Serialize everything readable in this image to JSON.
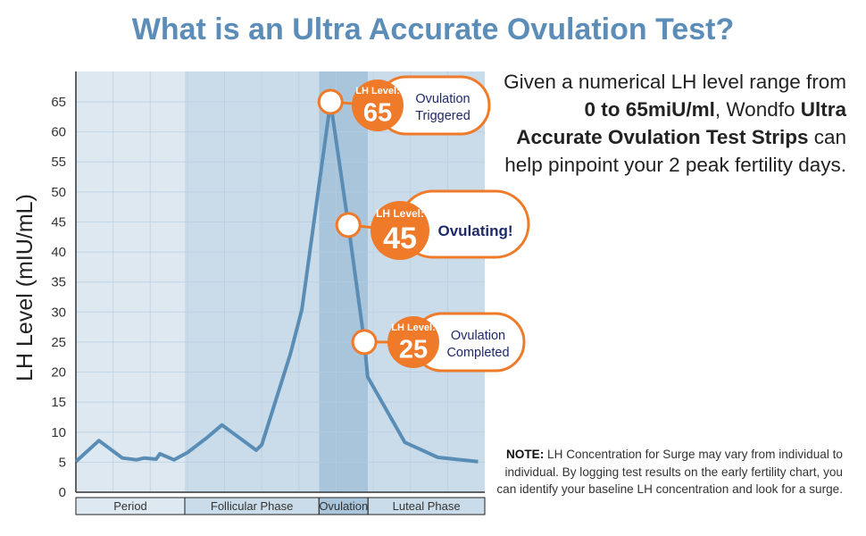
{
  "title": "What is an Ultra Accurate Ovulation Test?",
  "description": {
    "part1": "Given a numerical LH level range from ",
    "bold1": "0 to 65miU/ml",
    "part2": ", Wondfo ",
    "bold2": "Ultra Accurate Ovulation Test Strips",
    "part3": " can help pinpoint your 2 peak fertility days."
  },
  "note": {
    "label": "NOTE:",
    "text": " LH Concentration for Surge may vary from individual to individual. By logging test results on the early fertility chart, you can identify your baseline LH concentration and look for a surge."
  },
  "colors": {
    "title": "#5b8db8",
    "line": "#5a8db5",
    "orange": "#ee7a2a",
    "navy": "#1f2a6b",
    "band_light": "#dde8f1",
    "band_mid": "#cadcea",
    "band_dark": "#a8c5dc"
  },
  "chart_data": {
    "type": "line",
    "title": "",
    "xlabel": "",
    "ylabel": "LH Level (mIU/mL)",
    "ylim": [
      0,
      68
    ],
    "xlim": [
      0,
      11
    ],
    "yticks": [
      "0",
      "5",
      "10",
      "15",
      "20",
      "25",
      "30",
      "35",
      "40",
      "45",
      "50",
      "55",
      "60",
      "65"
    ],
    "grid": true,
    "series": [
      {
        "name": "LH Level",
        "x": [
          0,
          0.62,
          1.25,
          1.63,
          1.84,
          2.16,
          2.26,
          2.64,
          3.0,
          3.53,
          3.93,
          4.85,
          5.0,
          5.77,
          6.08,
          6.85,
          7.33,
          7.76,
          7.85,
          8.85,
          9.74,
          10.82
        ],
        "y": [
          5.1,
          8.6,
          5.7,
          5.4,
          5.7,
          5.5,
          6.4,
          5.4,
          6.6,
          9.1,
          11.2,
          7.0,
          7.9,
          23,
          30.4,
          65,
          44.5,
          25,
          19.2,
          8.3,
          5.8,
          5.1
        ]
      }
    ],
    "phases": [
      {
        "label": "Period",
        "from": 0,
        "to": 2.93,
        "shade": "light"
      },
      {
        "label": "Follicular Phase",
        "from": 2.93,
        "to": 6.54,
        "shade": "mid"
      },
      {
        "label": "Ovulation",
        "from": 6.54,
        "to": 7.86,
        "shade": "dark"
      },
      {
        "label": "Luteal Phase",
        "from": 7.86,
        "to": 11,
        "shade": "mid"
      }
    ],
    "annotations": [
      {
        "x": 6.85,
        "y": 65,
        "tag": "LH Level:",
        "value": "65",
        "line1": "Ovulation",
        "line2": "Triggered"
      },
      {
        "x": 7.33,
        "y": 44.5,
        "tag": "LH Level:",
        "value": "45",
        "line1": "Ovulating!",
        "line2": ""
      },
      {
        "x": 7.76,
        "y": 25,
        "tag": "LH Level:",
        "value": "25",
        "line1": "Ovulation",
        "line2": "Completed"
      }
    ]
  }
}
